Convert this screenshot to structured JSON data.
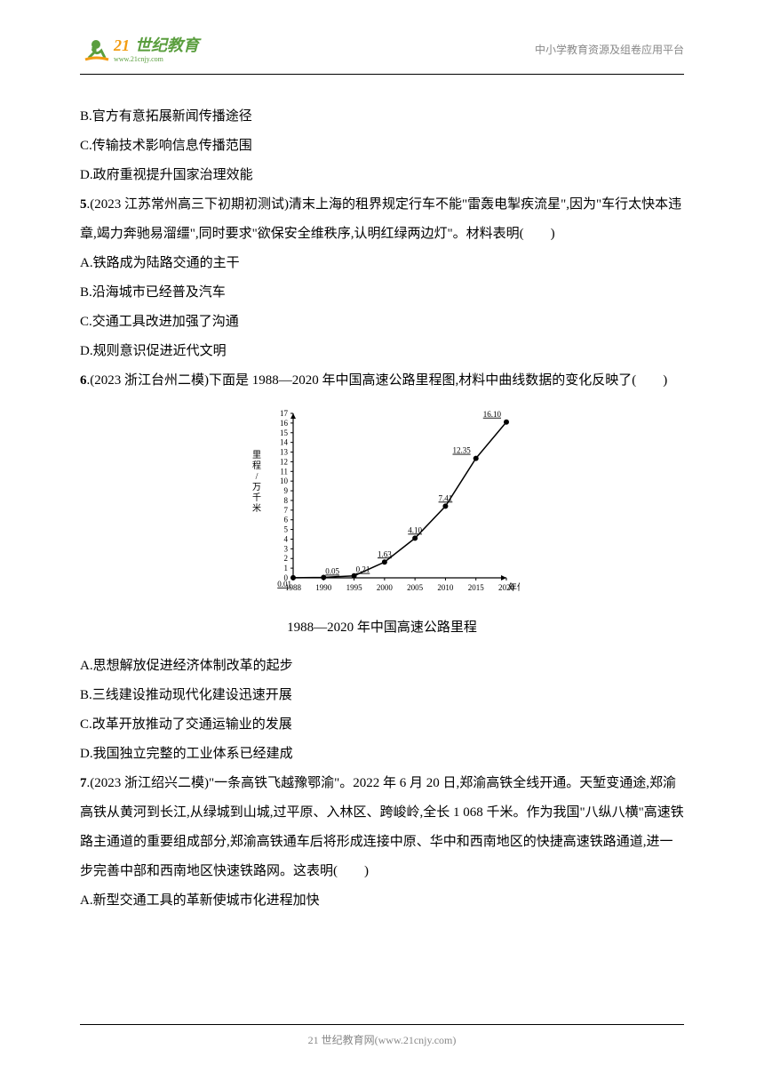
{
  "header": {
    "logo_text": "世纪教育",
    "logo_prefix": "21",
    "logo_url": "www.21cnjy.com",
    "right_text": "中小学教育资源及组卷应用平台"
  },
  "options_q4": {
    "b": "B.官方有意拓展新闻传播途径",
    "c": "C.传输技术影响信息传播范围",
    "d": "D.政府重视提升国家治理效能"
  },
  "q5": {
    "num": "5",
    "source": ".(2023 江苏常州高三下初期初测试)清末上海的租界规定行车不能\"雷轰电掣疾流星\",因为\"车行太快本违章,竭力奔驰易溜缰\",同时要求\"欲保安全维秩序,认明红绿两边灯\"。材料表明(　　)",
    "a": "A.铁路成为陆路交通的主干",
    "b": "B.沿海城市已经普及汽车",
    "c": "C.交通工具改进加强了沟通",
    "d": "D.规则意识促进近代文明"
  },
  "q6": {
    "num": "6",
    "source": ".(2023 浙江台州二模)下面是 1988—2020 年中国高速公路里程图,材料中曲线数据的变化反映了(　　)",
    "a": "A.思想解放促进经济体制改革的起步",
    "b": "B.三线建设推动现代化建设迅速开展",
    "c": "C.改革开放推动了交通运输业的发展",
    "d": "D.我国独立完整的工业体系已经建成"
  },
  "chart": {
    "type": "line",
    "caption": "1988—2020 年中国高速公路里程",
    "ylabel": "里程/万千米",
    "xlabel": "年份",
    "x_values": [
      "1988",
      "1990",
      "1995",
      "2000",
      "2005",
      "2010",
      "2015",
      "2020"
    ],
    "y_values": [
      0.01,
      0.05,
      0.21,
      1.63,
      4.1,
      7.41,
      12.35,
      16.1
    ],
    "y_labels": [
      "0.01",
      "0.05",
      "0.21",
      "1.63",
      "4.10",
      "7.41",
      "12.35",
      "16.10"
    ],
    "ylim": [
      0,
      17
    ],
    "ytick_step": 1,
    "line_color": "#000000",
    "marker_color": "#000000",
    "background_color": "#ffffff",
    "axis_color": "#000000",
    "label_fontsize": 10,
    "tick_fontsize": 9,
    "line_width": 1.5,
    "marker_size": 3
  },
  "q7": {
    "num": "7",
    "source": ".(2023 浙江绍兴二模)\"一条高铁飞越豫鄂渝\"。2022 年 6 月 20 日,郑渝高铁全线开通。天堑变通途,郑渝高铁从黄河到长江,从绿城到山城,过平原、入林区、跨峻岭,全长 1 068 千米。作为我国\"八纵八横\"高速铁路主通道的重要组成部分,郑渝高铁通车后将形成连接中原、华中和西南地区的快捷高速铁路通道,进一步完善中部和西南地区快速铁路网。这表明(　　)",
    "a": "A.新型交通工具的革新使城市化进程加快"
  },
  "footer": {
    "text": "21 世纪教育网(www.21cnjy.com)"
  }
}
